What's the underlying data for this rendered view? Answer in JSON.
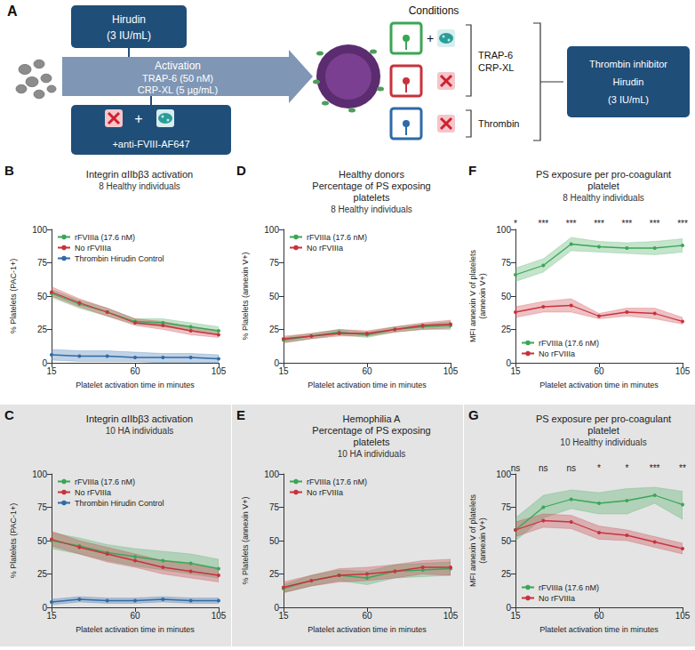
{
  "diagram": {
    "letter": "A",
    "hirudin_box": [
      "Hirudin",
      "(3 IU/mL)"
    ],
    "activation": [
      "Activation",
      "TRAP-6 (50 nM)",
      "CRP-XL (5 µg/mL)"
    ],
    "plus": "+",
    "antibody": "+anti-FVIII-AF647",
    "conditions_title": "Conditions",
    "agonists": [
      "TRAP-6",
      "CRP-XL"
    ],
    "thrombin": "Thrombin",
    "inhibitor_box": [
      "Thrombin inhibitor",
      "Hirudin",
      "(3 IU/mL)"
    ]
  },
  "chart_data": [
    {
      "letter": "B",
      "type": "line",
      "title": "Integrin αIIbβ3 activation",
      "subtitle": "8 Healthy individuals",
      "x": [
        15,
        30,
        45,
        60,
        75,
        90,
        105
      ],
      "xlim": [
        15,
        105
      ],
      "xticks": [
        15,
        60,
        105
      ],
      "ylim": [
        0,
        100
      ],
      "yticks": [
        0,
        25,
        50,
        75,
        100
      ],
      "xlabel": "Platelet activation time in minutes",
      "ylabel": "% Platelets (PAC-1+)",
      "grid": false,
      "legend": "upper left",
      "series": [
        {
          "name": "rFVIIIa (17.6 nM)",
          "color": "#3aa655",
          "marker": "circle",
          "line_style": "solid",
          "values": [
            52,
            44,
            38,
            31,
            30,
            27,
            24
          ],
          "lower": [
            49,
            41,
            35,
            29,
            27,
            24,
            21
          ],
          "upper": [
            55,
            47,
            41,
            33,
            33,
            30,
            27
          ]
        },
        {
          "name": "No rFVIIIa",
          "color": "#c8323c",
          "marker": "circle",
          "line_style": "solid",
          "values": [
            53,
            45,
            38,
            30,
            28,
            24,
            21
          ],
          "lower": [
            50,
            42,
            35,
            28,
            25,
            21,
            19
          ],
          "upper": [
            57,
            48,
            41,
            33,
            31,
            27,
            24
          ]
        },
        {
          "name": "Thrombin Hirudin Control",
          "color": "#2f6aa8",
          "marker": "circle",
          "line_style": "solid",
          "values": [
            6,
            5,
            5,
            4,
            4,
            4,
            3
          ],
          "lower": [
            2,
            1,
            1,
            1,
            0,
            0,
            0
          ],
          "upper": [
            10,
            9,
            9,
            8,
            7,
            7,
            6
          ]
        }
      ]
    },
    {
      "letter": "C",
      "type": "line",
      "title": "Integrin αIIbβ3 activation",
      "subtitle": "10 HA individuals",
      "x": [
        15,
        30,
        45,
        60,
        75,
        90,
        105
      ],
      "xlim": [
        15,
        105
      ],
      "xticks": [
        15,
        60,
        105
      ],
      "ylim": [
        0,
        100
      ],
      "yticks": [
        0,
        25,
        50,
        75,
        100
      ],
      "xlabel": "Platelet activation time in minutes",
      "ylabel": "% Platelets (PAC-1+)",
      "grid": false,
      "legend": "upper left",
      "series": [
        {
          "name": "rFVIIIa (17.6 nM)",
          "color": "#3aa655",
          "marker": "circle",
          "line_style": "solid",
          "values": [
            50,
            46,
            41,
            38,
            35,
            33,
            29
          ],
          "lower": [
            44,
            40,
            35,
            31,
            28,
            25,
            22
          ],
          "upper": [
            56,
            52,
            47,
            44,
            42,
            40,
            36
          ]
        },
        {
          "name": "No rFVIIIa",
          "color": "#c8323c",
          "marker": "circle",
          "line_style": "solid",
          "values": [
            51,
            45,
            40,
            35,
            30,
            27,
            24
          ],
          "lower": [
            46,
            40,
            34,
            30,
            25,
            22,
            19
          ],
          "upper": [
            57,
            50,
            45,
            40,
            35,
            32,
            29
          ]
        },
        {
          "name": "Thrombin Hirudin Control",
          "color": "#2f6aa8",
          "marker": "circle",
          "line_style": "solid",
          "values": [
            4,
            6,
            5,
            5,
            6,
            5,
            5
          ],
          "lower": [
            2,
            4,
            3,
            3,
            4,
            3,
            3
          ],
          "upper": [
            6,
            8,
            7,
            7,
            8,
            7,
            7
          ]
        }
      ]
    },
    {
      "letter": "D",
      "type": "line",
      "heading": "Healthy donors",
      "title": "Percentage of PS exposing platelets",
      "subtitle": "8 Healthy individuals",
      "x": [
        15,
        30,
        45,
        60,
        75,
        90,
        105
      ],
      "xlim": [
        15,
        105
      ],
      "xticks": [
        15,
        60,
        105
      ],
      "ylim": [
        0,
        100
      ],
      "yticks": [
        0,
        25,
        50,
        75,
        100
      ],
      "xlabel": "Platelet activation time in minutes",
      "ylabel": "% Platelets (annexin V+)",
      "grid": false,
      "legend": "upper left",
      "series": [
        {
          "name": "rFVIIIa (17.6 nM)",
          "color": "#3aa655",
          "marker": "circle",
          "line_style": "solid",
          "values": [
            17,
            20,
            23,
            21,
            25,
            27,
            28
          ],
          "lower": [
            15,
            18,
            21,
            19,
            23,
            25,
            25
          ],
          "upper": [
            19,
            22,
            25,
            23,
            27,
            29,
            31
          ]
        },
        {
          "name": "No rFVIIIa",
          "color": "#c8323c",
          "marker": "circle",
          "line_style": "solid",
          "values": [
            18,
            20,
            22,
            22,
            25,
            28,
            29
          ],
          "lower": [
            15,
            18,
            20,
            20,
            23,
            25,
            26
          ],
          "upper": [
            20,
            22,
            25,
            24,
            27,
            30,
            32
          ]
        }
      ]
    },
    {
      "letter": "E",
      "type": "line",
      "heading": "Hemophilia A",
      "title": "Percentage of PS exposing platelets",
      "subtitle": "10 HA individuals",
      "x": [
        15,
        30,
        45,
        60,
        75,
        90,
        105
      ],
      "xlim": [
        15,
        105
      ],
      "xticks": [
        15,
        60,
        105
      ],
      "ylim": [
        0,
        100
      ],
      "yticks": [
        0,
        25,
        50,
        75,
        100
      ],
      "xlabel": "Platelet activation time in minutes",
      "ylabel": "% Platelets (annexin V+)",
      "grid": false,
      "legend": "upper left",
      "series": [
        {
          "name": "rFVIIIa (17.6 nM)",
          "color": "#3aa655",
          "marker": "circle",
          "line_style": "solid",
          "values": [
            14,
            20,
            24,
            22,
            27,
            28,
            29
          ],
          "lower": [
            11,
            16,
            20,
            17,
            22,
            23,
            24
          ],
          "upper": [
            17,
            24,
            28,
            27,
            32,
            33,
            34
          ]
        },
        {
          "name": "No rFVIIIa",
          "color": "#c8323c",
          "marker": "circle",
          "line_style": "solid",
          "values": [
            15,
            20,
            24,
            25,
            27,
            30,
            30
          ],
          "lower": [
            11,
            16,
            19,
            20,
            22,
            25,
            24
          ],
          "upper": [
            19,
            24,
            29,
            30,
            32,
            35,
            36
          ]
        }
      ]
    },
    {
      "letter": "F",
      "type": "line",
      "title": "PS exposure per pro-coagulant platelet",
      "subtitle": "8 Healthy individuals",
      "x": [
        15,
        30,
        45,
        60,
        75,
        90,
        105
      ],
      "xlim": [
        15,
        105
      ],
      "xticks": [
        15,
        60,
        105
      ],
      "ylim": [
        0,
        100
      ],
      "yticks": [
        0,
        25,
        50,
        75,
        100
      ],
      "xlabel": "Platelet activation time in minutes",
      "ylabel": "MFI annexin V of platelets (annexin V+)",
      "grid": false,
      "legend": "lower left",
      "annotations": [
        "*",
        "***",
        "***",
        "***",
        "***",
        "***",
        "***"
      ],
      "series": [
        {
          "name": "rFVIIIa (17.6 nM)",
          "color": "#3aa655",
          "marker": "circle",
          "line_style": "solid",
          "values": [
            66,
            73,
            89,
            87,
            86,
            86,
            88
          ],
          "lower": [
            61,
            68,
            84,
            83,
            82,
            81,
            83
          ],
          "upper": [
            71,
            78,
            94,
            91,
            90,
            91,
            93
          ]
        },
        {
          "name": "No rFVIIIa",
          "color": "#c8323c",
          "marker": "circle",
          "line_style": "solid",
          "values": [
            38,
            42,
            43,
            35,
            38,
            37,
            31
          ],
          "lower": [
            34,
            38,
            38,
            33,
            35,
            33,
            29
          ],
          "upper": [
            42,
            46,
            48,
            37,
            41,
            41,
            34
          ]
        }
      ]
    },
    {
      "letter": "G",
      "type": "line",
      "title": "PS exposure per pro-coagulant platelet",
      "subtitle": "10 Healthy individuals",
      "x": [
        15,
        30,
        45,
        60,
        75,
        90,
        105
      ],
      "xlim": [
        15,
        105
      ],
      "xticks": [
        15,
        60,
        105
      ],
      "ylim": [
        0,
        100
      ],
      "yticks": [
        0,
        25,
        50,
        75,
        100
      ],
      "xlabel": "Platelet activation time in minutes",
      "ylabel": "MFI annexin V of platelets (annexin V+)",
      "grid": false,
      "legend": "lower left",
      "annotations": [
        "ns",
        "ns",
        "ns",
        "*",
        "*",
        "***",
        "**"
      ],
      "series": [
        {
          "name": "rFVIIIa (17.6 nM)",
          "color": "#3aa655",
          "marker": "circle",
          "line_style": "solid",
          "values": [
            58,
            75,
            81,
            78,
            80,
            84,
            77
          ],
          "lower": [
            50,
            67,
            74,
            70,
            70,
            78,
            66
          ],
          "upper": [
            67,
            84,
            88,
            86,
            89,
            90,
            87
          ]
        },
        {
          "name": "No rFVIIIa",
          "color": "#c8323c",
          "marker": "circle",
          "line_style": "solid",
          "values": [
            58,
            65,
            64,
            56,
            54,
            49,
            44
          ],
          "lower": [
            53,
            60,
            59,
            51,
            50,
            45,
            40
          ],
          "upper": [
            64,
            70,
            69,
            61,
            58,
            53,
            48
          ]
        }
      ]
    }
  ]
}
